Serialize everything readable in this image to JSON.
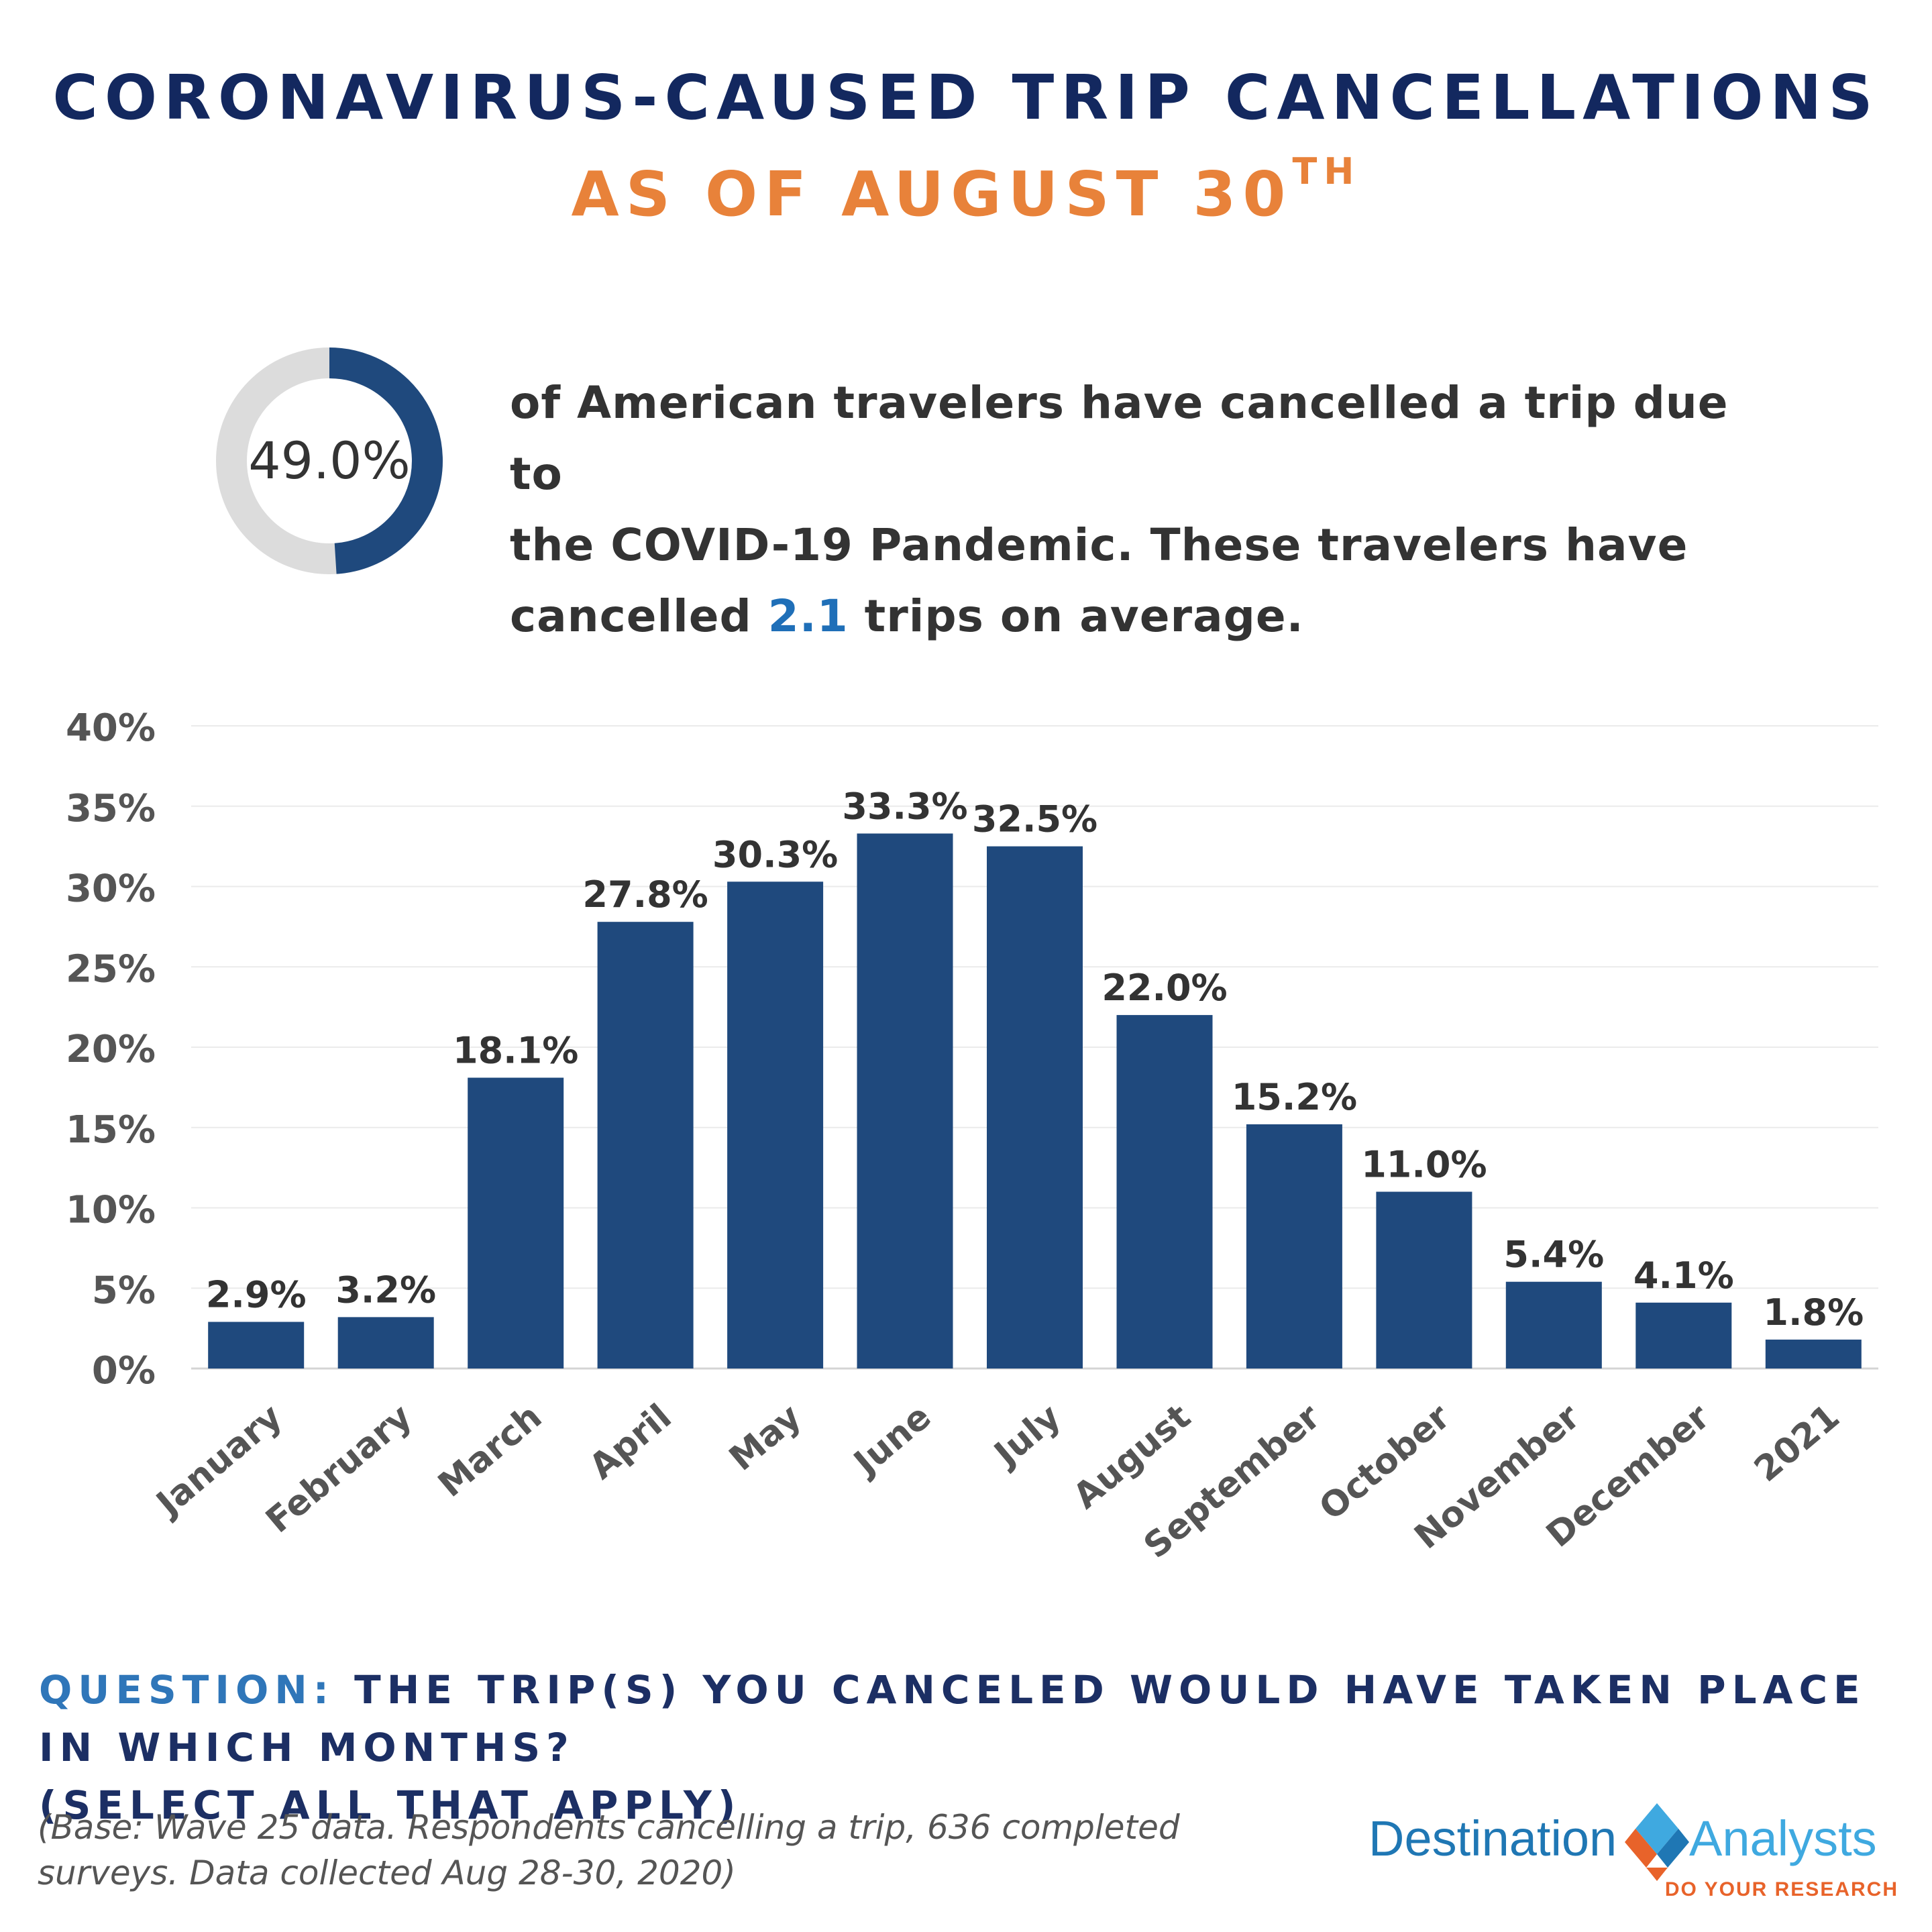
{
  "header": {
    "title": "CORONAVIRUS-CAUSED TRIP CANCELLATIONS",
    "subtitle_main": "AS OF AUGUST 30",
    "subtitle_sup": "TH"
  },
  "summary": {
    "donut_value": 49.0,
    "donut_label": "49.0%",
    "text_line1": "of American travelers have cancelled a trip due to",
    "text_line2": "the COVID-19 Pandemic. These travelers have",
    "text_line3_pre": "cancelled ",
    "text_highlight": "2.1",
    "text_line3_post": " trips on average.",
    "colors": {
      "fill": "#1f497d",
      "track": "#dcdcdc",
      "highlight": "#1f6fb8"
    }
  },
  "chart_data": {
    "type": "bar",
    "categories": [
      "January",
      "February",
      "March",
      "April",
      "May",
      "June",
      "July",
      "August",
      "September",
      "October",
      "November",
      "December",
      "2021"
    ],
    "values": [
      2.9,
      3.2,
      18.1,
      27.8,
      30.3,
      33.3,
      32.5,
      22.0,
      15.2,
      11.0,
      5.4,
      4.1,
      1.8
    ],
    "data_labels": [
      "2.9%",
      "3.2%",
      "18.1%",
      "27.8%",
      "30.3%",
      "33.3%",
      "32.5%",
      "22.0%",
      "15.2%",
      "11.0%",
      "5.4%",
      "4.1%",
      "1.8%"
    ],
    "y_ticks": [
      "0%",
      "5%",
      "10%",
      "15%",
      "20%",
      "25%",
      "30%",
      "35%",
      "40%"
    ],
    "ylim": [
      0,
      40
    ],
    "grid": true,
    "bar_color": "#1f497d"
  },
  "footer": {
    "question_label": "QUESTION:",
    "question_text": " THE TRIP(S) YOU CANCELED WOULD HAVE TAKEN PLACE IN WHICH MONTHS?",
    "question_text2": "(SELECT ALL THAT APPLY)",
    "base_note_line1": "(Base: Wave 25 data. Respondents cancelling a trip, 636 completed",
    "base_note_line2": "surveys. Data collected Aug 28-30, 2020)"
  },
  "logo": {
    "word1": "Destination",
    "word2": "Analysts",
    "tagline": "DO YOUR RESEARCH",
    "colors": {
      "blue": "#1f77b4",
      "light_blue": "#3fa9e0",
      "orange": "#e8632a"
    }
  }
}
